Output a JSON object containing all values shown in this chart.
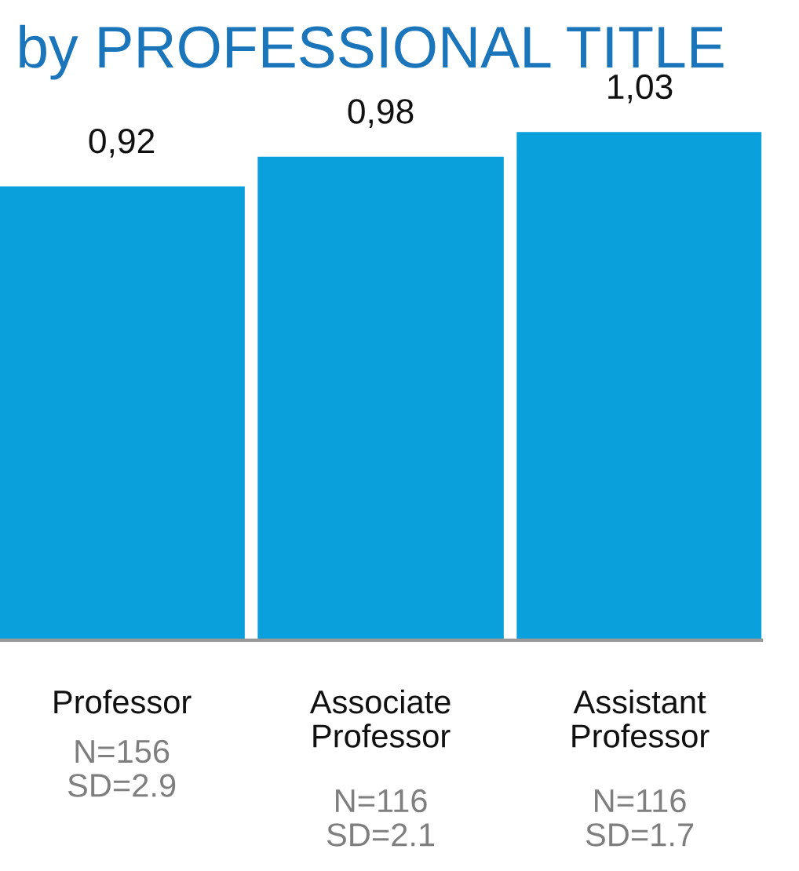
{
  "chart_data": {
    "type": "bar",
    "title": "by PROFESSIONAL TITLE",
    "categories": [
      "Professor",
      "Associate Professor",
      "Assistant Professor"
    ],
    "values": [
      0.92,
      0.98,
      1.03
    ],
    "value_labels": [
      "0,92",
      "0,98",
      "1,03"
    ],
    "color": "#0aa0dc",
    "tick_labels": "x",
    "annotations": [
      "N=156\nSD=2.9",
      "N=116\nSD=2.1",
      "N=116\nSD=1.7"
    ]
  }
}
